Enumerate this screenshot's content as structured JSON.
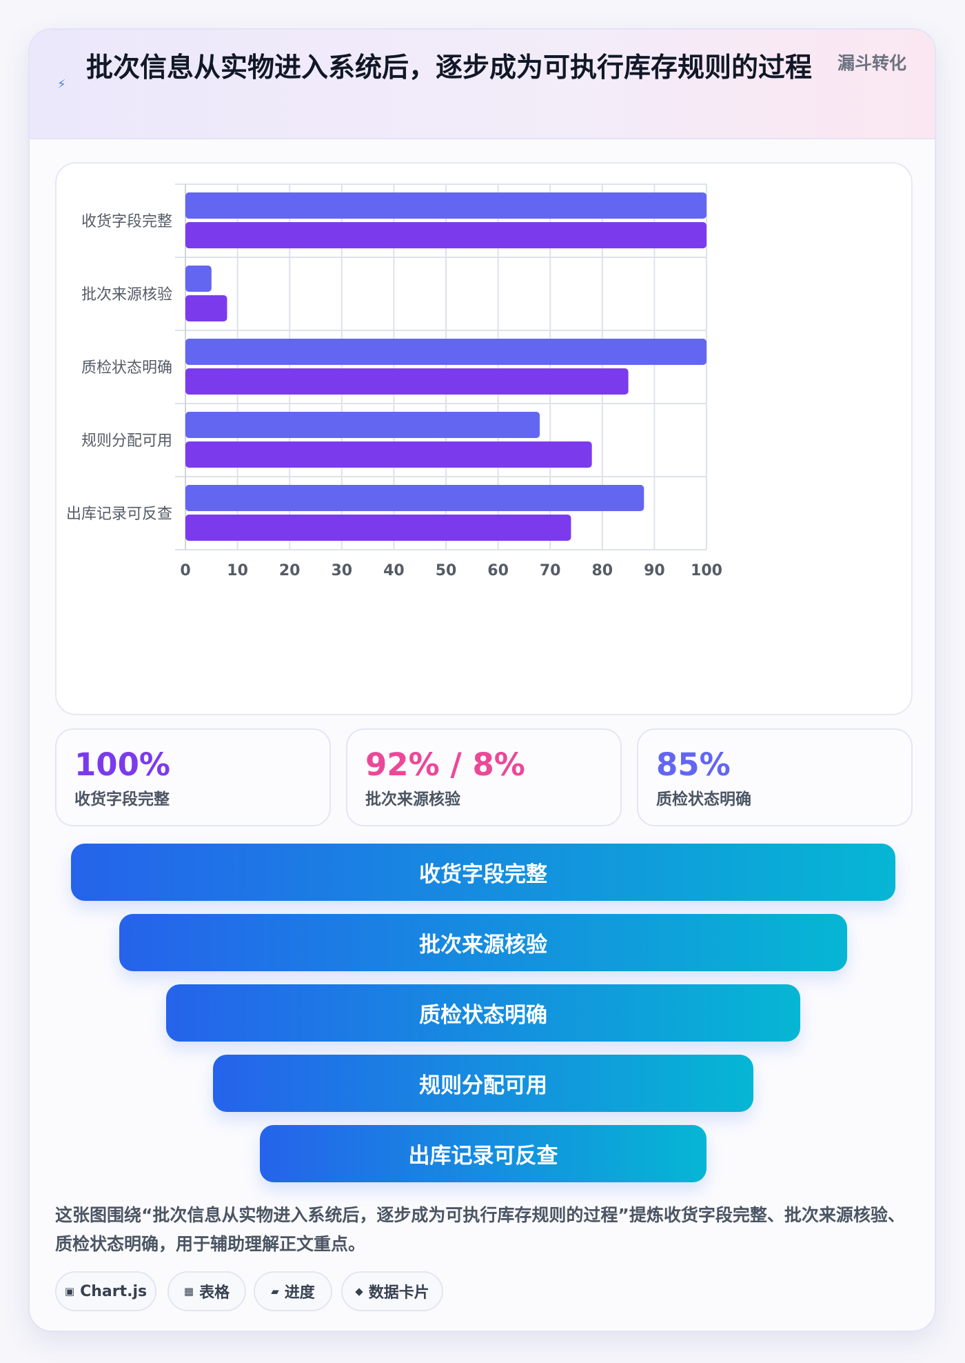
{
  "header": {
    "icon": "lightning-icon",
    "title": "批次信息从实物进入系统后，逐步成为可执行库存规则的过程",
    "tag": "漏斗转化"
  },
  "chart_data": {
    "type": "bar",
    "orientation": "horizontal",
    "categories": [
      "收货字段完整",
      "批次来源核验",
      "质检状态明确",
      "规则分配可用",
      "出库记录可反查"
    ],
    "series": [
      {
        "values": [
          100,
          5,
          100,
          68,
          88
        ],
        "color": "#6366f1"
      },
      {
        "values": [
          100,
          8,
          85,
          78,
          74
        ],
        "color": "#7c3aed"
      }
    ],
    "xlim": [
      0,
      100
    ],
    "xticks": [
      0,
      10,
      20,
      30,
      40,
      50,
      60,
      70,
      80,
      90,
      100
    ],
    "grid": true,
    "legend": "none"
  },
  "stats": [
    {
      "value": "100%",
      "label": "收货字段完整",
      "color": "#7c3aed"
    },
    {
      "value": "92% / 8%",
      "label": "批次来源核验",
      "color": "#ec4899"
    },
    {
      "value": "85%",
      "label": "质检状态明确",
      "color": "#6366f1"
    }
  ],
  "funnel": [
    "收货字段完整",
    "批次来源核验",
    "质检状态明确",
    "规则分配可用",
    "出库记录可反查"
  ],
  "description": "这张图围绕“批次信息从实物进入系统后，逐步成为可执行库存规则的过程”提炼收货字段完整、批次来源核验、质检状态明确，用于辅助理解正文重点。",
  "chips": [
    {
      "icon": "▣",
      "label": "Chart.js"
    },
    {
      "icon": "▦",
      "label": "表格"
    },
    {
      "icon": "▰",
      "label": "进度"
    },
    {
      "icon": "◆",
      "label": "数据卡片"
    }
  ]
}
